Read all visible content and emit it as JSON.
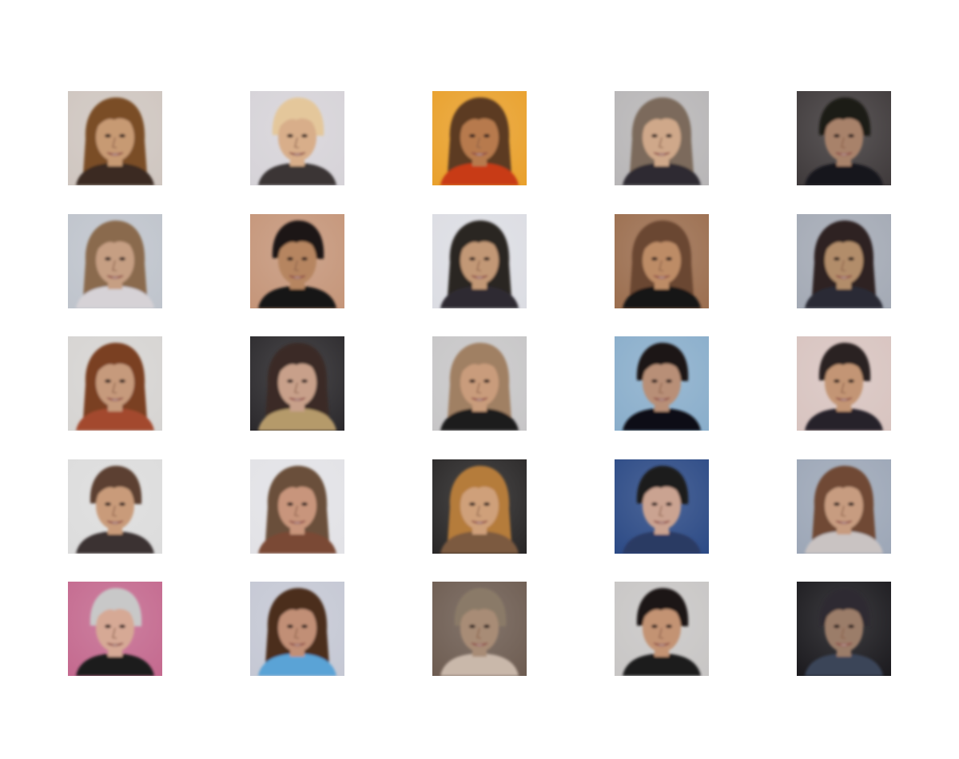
{
  "figure": {
    "description_free": true,
    "rows": 5,
    "cols": 5
  },
  "samples": [
    {
      "bg": "#cfc6c0",
      "hair": "#7a4e25",
      "skin": "#c79a73",
      "shirt": "#3a2a20",
      "hair_style": "long"
    },
    {
      "bg": "#d6d3d8",
      "hair": "#e4c79b",
      "skin": "#d8ae8a",
      "shirt": "#3b3636",
      "hair_style": "short"
    },
    {
      "bg": "#e9a12d",
      "hair": "#5b3a22",
      "skin": "#b77a4e",
      "shirt": "#c83a16",
      "hair_style": "long"
    },
    {
      "bg": "#b8b6b7",
      "hair": "#7c6a5b",
      "skin": "#cfa88a",
      "shirt": "#2e2a33",
      "hair_style": "long"
    },
    {
      "bg": "#403b3c",
      "hair": "#1f1a18",
      "skin": "#a8826a",
      "shirt": "#16151b",
      "hair_style": "short"
    },
    {
      "bg": "#bfc4cc",
      "hair": "#8a6b4d",
      "skin": "#c69f83",
      "shirt": "#d6d2d6",
      "hair_style": "long"
    },
    {
      "bg": "#c5967a",
      "hair": "#1d1514",
      "skin": "#b68560",
      "shirt": "#141212",
      "hair_style": "short"
    },
    {
      "bg": "#dcdde3",
      "hair": "#2b2524",
      "skin": "#c29876",
      "shirt": "#2f2c30",
      "hair_style": "long"
    },
    {
      "bg": "#9c6f50",
      "hair": "#6b4633",
      "skin": "#bd8c66",
      "shirt": "#191616",
      "hair_style": "long"
    },
    {
      "bg": "#a4aab5",
      "hair": "#2d2422",
      "skin": "#b28d6b",
      "shirt": "#2a2c34",
      "hair_style": "long"
    },
    {
      "bg": "#d6d4d2",
      "hair": "#7a3f24",
      "skin": "#c69a7b",
      "shirt": "#a34a2e",
      "hair_style": "long"
    },
    {
      "bg": "#2c2a2d",
      "hair": "#3b2b25",
      "skin": "#c8a08a",
      "shirt": "#b59a6b",
      "hair_style": "long"
    },
    {
      "bg": "#c7c6c7",
      "hair": "#a08063",
      "skin": "#c99c7c",
      "shirt": "#1d1a1c",
      "hair_style": "long"
    },
    {
      "bg": "#8aaecb",
      "hair": "#1b1716",
      "skin": "#b88f77",
      "shirt": "#0f0f12",
      "hair_style": "short"
    },
    {
      "bg": "#d8c4c0",
      "hair": "#2a2221",
      "skin": "#c39574",
      "shirt": "#26242a",
      "hair_style": "short"
    },
    {
      "bg": "#dcdcdc",
      "hair": "#5b4130",
      "skin": "#c99b7a",
      "shirt": "#3b3030",
      "hair_style": "short"
    },
    {
      "bg": "#e2e2e6",
      "hair": "#6b4f3a",
      "skin": "#c8957c",
      "shirt": "#7a4a34",
      "hair_style": "long"
    },
    {
      "bg": "#2a2828",
      "hair": "#b57b3a",
      "skin": "#cfa07a",
      "shirt": "#7b5a40",
      "hair_style": "long"
    },
    {
      "bg": "#2d4b86",
      "hair": "#1f1b1b",
      "skin": "#caa391",
      "shirt": "#2b3a63",
      "hair_style": "short"
    },
    {
      "bg": "#9da7b7",
      "hair": "#6f4a35",
      "skin": "#c79c80",
      "shirt": "#c9c3c2",
      "hair_style": "long"
    },
    {
      "bg": "#c46a8f",
      "hair": "#c8c8c8",
      "skin": "#d6a995",
      "shirt": "#1b1a1d",
      "hair_style": "short"
    },
    {
      "bg": "#c5c8d4",
      "hair": "#4b2d1f",
      "skin": "#c18f76",
      "shirt": "#5aa3d6",
      "hair_style": "long"
    },
    {
      "bg": "#6e5d52",
      "hair": "#8a7a68",
      "skin": "#a88c76",
      "shirt": "#c9b8aa",
      "hair_style": "short"
    },
    {
      "bg": "#c8c6c5",
      "hair": "#1d1818",
      "skin": "#c39373",
      "shirt": "#1d1a1c",
      "hair_style": "short"
    },
    {
      "bg": "#1c1b1f",
      "hair": "#2f2c33",
      "skin": "#9b7d69",
      "shirt": "#3b4558",
      "hair_style": "short"
    }
  ]
}
